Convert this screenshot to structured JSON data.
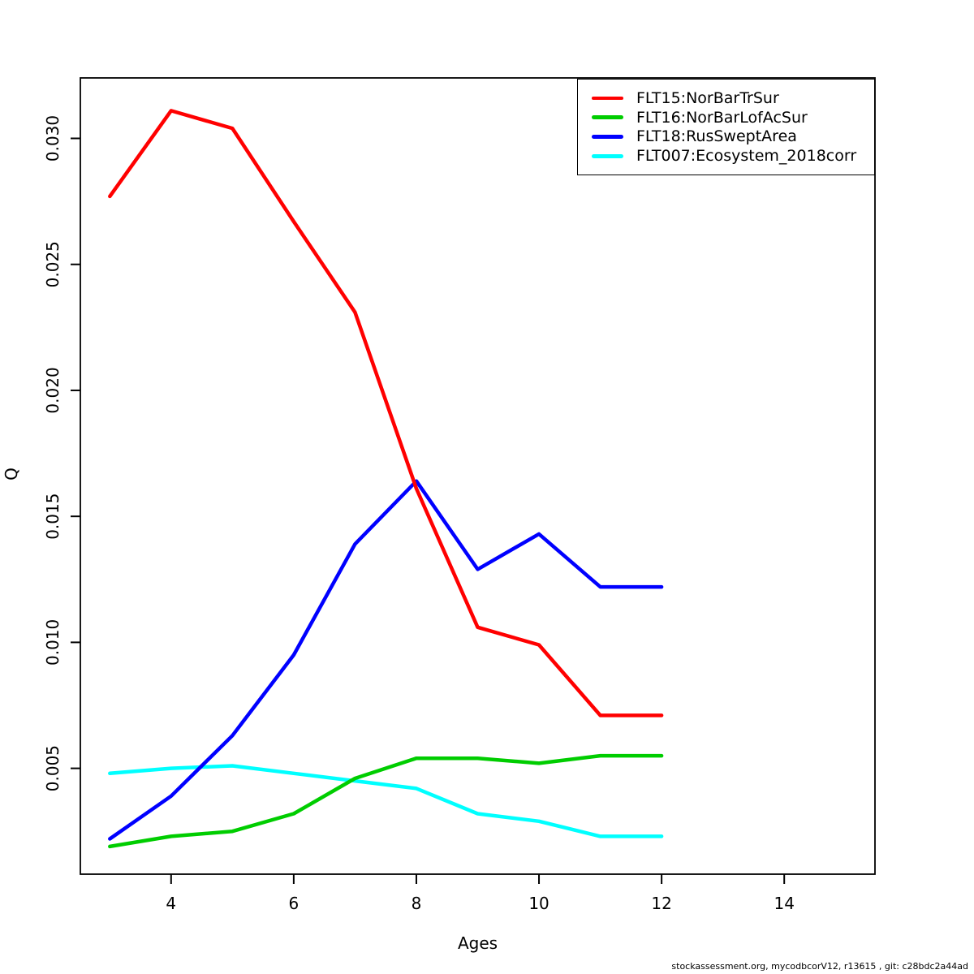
{
  "chart_data": {
    "type": "line",
    "title": "",
    "xlabel": "Ages",
    "ylabel": "Q",
    "x": [
      3,
      4,
      5,
      6,
      7,
      8,
      9,
      10,
      11,
      12
    ],
    "series": [
      {
        "name": "FLT15:NorBarTrSur",
        "color": "#FF0000",
        "values": [
          0.0277,
          0.0311,
          0.0304,
          0.0267,
          0.0231,
          0.0161,
          0.0106,
          0.0099,
          0.0071,
          0.0071
        ]
      },
      {
        "name": "FLT16:NorBarLofAcSur",
        "color": "#00CD00",
        "values": [
          0.0019,
          0.0023,
          0.0025,
          0.0032,
          0.0046,
          0.0054,
          0.0054,
          0.0052,
          0.0055,
          0.0055
        ]
      },
      {
        "name": "FLT18:RusSweptArea",
        "color": "#0000FF",
        "values": [
          0.0022,
          0.0039,
          0.0063,
          0.0095,
          0.0139,
          0.0164,
          0.0129,
          0.0143,
          0.0122,
          0.0122
        ]
      },
      {
        "name": "FLT007:Ecosystem_2018corr",
        "color": "#00FFFF",
        "values": [
          0.0048,
          0.005,
          0.0051,
          0.0048,
          0.0045,
          0.0042,
          0.0032,
          0.0029,
          0.0023,
          0.0023
        ]
      }
    ],
    "draw_order": [
      3,
      1,
      2,
      0
    ],
    "xticks": [
      4,
      6,
      8,
      10,
      12,
      14
    ],
    "yticks": [
      0.005,
      0.01,
      0.015,
      0.02,
      0.025,
      0.03
    ],
    "ytick_labels": [
      "0.005",
      "0.010",
      "0.015",
      "0.020",
      "0.025",
      "0.030"
    ],
    "xlim": [
      2.52,
      15.48
    ],
    "ylim": [
      0.0008,
      0.0324
    ],
    "grid": false,
    "legend_position": "top-right"
  },
  "legend": {
    "items": [
      {
        "label": "FLT15:NorBarTrSur"
      },
      {
        "label": "FLT16:NorBarLofAcSur"
      },
      {
        "label": "FLT18:RusSweptArea"
      },
      {
        "label": "FLT007:Ecosystem_2018corr"
      }
    ]
  },
  "footer": {
    "text": "stockassessment.org, mycodbcorV12, r13615 , git: c28bdc2a44ad"
  }
}
